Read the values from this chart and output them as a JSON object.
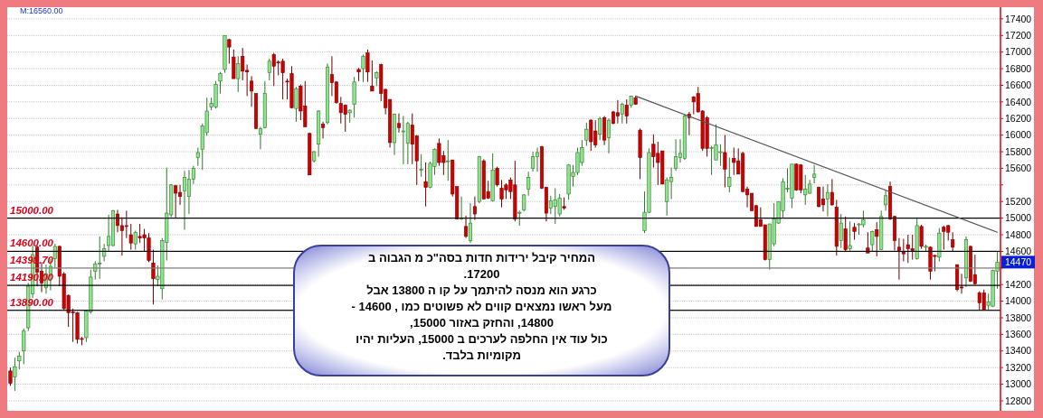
{
  "chart_data": {
    "type": "candlestick",
    "categories": [
      null,
      null,
      null,
      null,
      null,
      null,
      null,
      null,
      null,
      null,
      null,
      null,
      null,
      null,
      null,
      null,
      null,
      null,
      null,
      null,
      null,
      null,
      null,
      null,
      null,
      null,
      null,
      null,
      null,
      null,
      null,
      null,
      null,
      null,
      null,
      null,
      null,
      null,
      null,
      null,
      null,
      null,
      null,
      null,
      null,
      null,
      null,
      null,
      null,
      null,
      null,
      null,
      null,
      null,
      null,
      null,
      null,
      null,
      null,
      null,
      null,
      null,
      null,
      null,
      null,
      null,
      null,
      null,
      null,
      null,
      null,
      null,
      null,
      null,
      null,
      null,
      null,
      null,
      null,
      null,
      null,
      null,
      null,
      null,
      null,
      null,
      null,
      null,
      null,
      null,
      null,
      null,
      null,
      null,
      null,
      null,
      null,
      null,
      null,
      null,
      null,
      null,
      null,
      null,
      null,
      null,
      null,
      null,
      null,
      null,
      null,
      null,
      null,
      null,
      null,
      null,
      null,
      null,
      null,
      null,
      null,
      null,
      null,
      null,
      null,
      null,
      null,
      null,
      null,
      null,
      null,
      null,
      null,
      null,
      null,
      null,
      null,
      null,
      null,
      null,
      null,
      null,
      null,
      null,
      null,
      null,
      null,
      null,
      null,
      null,
      null,
      null,
      null,
      null,
      null,
      null,
      null,
      null,
      null,
      null,
      null,
      null,
      null,
      null,
      null,
      null,
      null,
      null,
      null,
      null,
      null,
      null,
      null,
      null,
      null,
      null,
      null,
      null,
      null,
      null,
      null,
      null,
      null,
      null,
      null,
      null,
      null,
      null,
      null,
      null,
      null,
      null,
      null,
      null,
      null,
      null,
      null,
      null,
      null,
      null,
      null,
      null,
      null,
      null,
      null,
      null,
      null,
      null,
      null,
      null,
      null,
      null,
      null,
      null,
      null,
      null,
      null,
      null,
      null,
      null,
      null,
      null
    ],
    "ohlc": [
      [
        13160,
        13200,
        12980,
        13010
      ],
      [
        13090,
        13320,
        12920,
        13210
      ],
      [
        13280,
        13390,
        13180,
        13340
      ],
      [
        13400,
        13670,
        13240,
        13640
      ],
      [
        13680,
        14220,
        13640,
        14180
      ],
      [
        14090,
        14670,
        14040,
        14560
      ],
      [
        14650,
        14670,
        14180,
        14350
      ],
      [
        14360,
        14470,
        14110,
        14220
      ],
      [
        14160,
        14440,
        14090,
        14330
      ],
      [
        14310,
        14510,
        14130,
        14420
      ],
      [
        14510,
        14690,
        14400,
        14660
      ],
      [
        14660,
        14670,
        14180,
        14300
      ],
      [
        14330,
        14350,
        13890,
        13910
      ],
      [
        14070,
        14080,
        13690,
        13860
      ],
      [
        13870,
        13910,
        13510,
        13860
      ],
      [
        13860,
        13870,
        13490,
        13540
      ],
      [
        13550,
        13570,
        13470,
        13540
      ],
      [
        13560,
        13890,
        13510,
        13880
      ],
      [
        13870,
        14380,
        13850,
        14290
      ],
      [
        14360,
        14480,
        14260,
        14450
      ],
      [
        14450,
        14780,
        14270,
        14460
      ],
      [
        14540,
        14690,
        14480,
        14630
      ],
      [
        14670,
        15040,
        14600,
        14780
      ],
      [
        14670,
        15100,
        14660,
        15090
      ],
      [
        15050,
        15100,
        14830,
        14910
      ],
      [
        14910,
        15010,
        14550,
        14850
      ],
      [
        14910,
        15090,
        14760,
        14900
      ],
      [
        14800,
        14930,
        14620,
        14700
      ],
      [
        14690,
        14850,
        14620,
        14830
      ],
      [
        14780,
        14930,
        14700,
        14760
      ],
      [
        14800,
        14870,
        14600,
        14760
      ],
      [
        14760,
        14820,
        14470,
        14490
      ],
      [
        14460,
        14620,
        13960,
        14270
      ],
      [
        14260,
        14430,
        14180,
        14300
      ],
      [
        14150,
        14760,
        14020,
        14730
      ],
      [
        14710,
        15610,
        14490,
        15060
      ],
      [
        15040,
        15410,
        15010,
        15400
      ],
      [
        15390,
        15400,
        15000,
        15300
      ],
      [
        15310,
        15400,
        15160,
        15260
      ],
      [
        15330,
        15570,
        14860,
        15490
      ],
      [
        15260,
        15580,
        15050,
        15470
      ],
      [
        15470,
        15630,
        15410,
        15600
      ],
      [
        15730,
        15850,
        15630,
        15790
      ],
      [
        15830,
        16140,
        15580,
        16110
      ],
      [
        16030,
        16450,
        15990,
        16290
      ],
      [
        16340,
        16450,
        16300,
        16380
      ],
      [
        16340,
        16650,
        16320,
        16610
      ],
      [
        16650,
        16760,
        16500,
        16740
      ],
      [
        16790,
        17200,
        16750,
        17200
      ],
      [
        17150,
        17160,
        16860,
        17060
      ],
      [
        16940,
        17030,
        16680,
        16680
      ],
      [
        16680,
        16950,
        16520,
        16860
      ],
      [
        16950,
        17050,
        16660,
        16770
      ],
      [
        16780,
        16850,
        16470,
        16760
      ],
      [
        16650,
        16710,
        16340,
        16530
      ],
      [
        16500,
        16500,
        16080,
        16080
      ],
      [
        16010,
        16100,
        15830,
        16080
      ],
      [
        16090,
        16650,
        16080,
        16500
      ],
      [
        16750,
        16920,
        16660,
        16890
      ],
      [
        16970,
        16990,
        16590,
        16830
      ],
      [
        16880,
        16900,
        16720,
        16870
      ],
      [
        16890,
        16920,
        16430,
        16750
      ],
      [
        16650,
        16680,
        16430,
        16640
      ],
      [
        16740,
        16830,
        16320,
        16330
      ],
      [
        16320,
        16580,
        16160,
        16560
      ],
      [
        16590,
        16610,
        16180,
        16290
      ],
      [
        16350,
        16650,
        16100,
        16100
      ],
      [
        16020,
        16030,
        15520,
        15520
      ],
      [
        15690,
        15810,
        15670,
        15800
      ],
      [
        15890,
        16300,
        15740,
        16290
      ],
      [
        16130,
        16160,
        15960,
        16090
      ],
      [
        16150,
        16860,
        16130,
        16820
      ],
      [
        16730,
        16950,
        16470,
        16630
      ],
      [
        16640,
        16650,
        16380,
        16390
      ],
      [
        16380,
        16460,
        16140,
        16270
      ],
      [
        16360,
        16370,
        16040,
        16250
      ],
      [
        16270,
        16310,
        16150,
        16300
      ],
      [
        16370,
        16700,
        16210,
        16640
      ],
      [
        16790,
        16810,
        16650,
        16760
      ],
      [
        16800,
        16970,
        16640,
        16950
      ],
      [
        16990,
        17030,
        16640,
        16760
      ],
      [
        16590,
        16900,
        16530,
        16530
      ],
      [
        16690,
        16770,
        16590,
        16750
      ],
      [
        16850,
        16860,
        16410,
        16500
      ],
      [
        16550,
        16560,
        16250,
        16330
      ],
      [
        16430,
        16430,
        15850,
        15910
      ],
      [
        15910,
        16260,
        15760,
        16250
      ],
      [
        16140,
        16260,
        16030,
        16090
      ],
      [
        16050,
        16230,
        15650,
        16050
      ],
      [
        15900,
        16160,
        15650,
        16140
      ],
      [
        16120,
        16260,
        15650,
        15890
      ],
      [
        15990,
        16000,
        15400,
        15690
      ],
      [
        15590,
        15770,
        15500,
        15590
      ],
      [
        15440,
        15670,
        15140,
        15370
      ],
      [
        15370,
        15680,
        15360,
        15660
      ],
      [
        15620,
        15840,
        15520,
        15830
      ],
      [
        15900,
        15960,
        15630,
        15670
      ],
      [
        15750,
        15810,
        15520,
        15670
      ],
      [
        15690,
        15940,
        15450,
        15690
      ],
      [
        15700,
        15700,
        15260,
        15290
      ],
      [
        15380,
        15380,
        14990,
        14990
      ],
      [
        15000,
        15260,
        14980,
        15000
      ],
      [
        14900,
        15030,
        14760,
        14780
      ],
      [
        14730,
        15180,
        14700,
        14940
      ],
      [
        15140,
        15260,
        14980,
        15050
      ],
      [
        15200,
        15750,
        15180,
        15740
      ],
      [
        15690,
        15710,
        15230,
        15230
      ],
      [
        15320,
        15450,
        15230,
        15240
      ],
      [
        15210,
        15780,
        15200,
        15580
      ],
      [
        15600,
        15620,
        15380,
        15400
      ],
      [
        15360,
        15460,
        15130,
        15230
      ],
      [
        15400,
        15420,
        15230,
        15340
      ],
      [
        15460,
        15490,
        15230,
        15320
      ],
      [
        15400,
        15690,
        14960,
        14990
      ],
      [
        15070,
        15090,
        14910,
        15070
      ],
      [
        15100,
        15290,
        15080,
        15280
      ],
      [
        15350,
        15560,
        15270,
        15490
      ],
      [
        15600,
        15800,
        15560,
        15740
      ],
      [
        15740,
        15850,
        15560,
        15790
      ],
      [
        15860,
        15870,
        15350,
        15360
      ],
      [
        15370,
        15380,
        14960,
        15060
      ],
      [
        15120,
        15270,
        15050,
        15210
      ],
      [
        15140,
        15360,
        14930,
        15220
      ],
      [
        15050,
        15290,
        15020,
        15240
      ],
      [
        15140,
        15250,
        15100,
        15120
      ],
      [
        15290,
        15650,
        15220,
        15640
      ],
      [
        15500,
        15640,
        15380,
        15550
      ],
      [
        15550,
        15850,
        15520,
        15790
      ],
      [
        15670,
        15940,
        15630,
        15850
      ],
      [
        15940,
        16150,
        15870,
        16070
      ],
      [
        16180,
        16190,
        15810,
        15920
      ],
      [
        16050,
        16180,
        15850,
        15880
      ],
      [
        16010,
        16220,
        15940,
        16200
      ],
      [
        16210,
        16230,
        15880,
        15940
      ],
      [
        15970,
        16200,
        15780,
        16180
      ],
      [
        16280,
        16290,
        16130,
        16140
      ],
      [
        16270,
        16420,
        16140,
        16230
      ],
      [
        16250,
        16390,
        16140,
        16370
      ],
      [
        16360,
        16430,
        16140,
        16230
      ],
      [
        16360,
        16470,
        16330,
        16470
      ],
      [
        16450,
        16470,
        16370,
        16370
      ],
      [
        16060,
        16080,
        15470,
        15730
      ],
      [
        14850,
        15320,
        14820,
        15070
      ],
      [
        15070,
        15840,
        15060,
        15790
      ],
      [
        15890,
        16010,
        15610,
        15740
      ],
      [
        15780,
        15920,
        15400,
        15670
      ],
      [
        15810,
        15810,
        15410,
        15410
      ],
      [
        15200,
        15490,
        15030,
        15460
      ],
      [
        15440,
        15610,
        15230,
        15490
      ],
      [
        15600,
        15950,
        15570,
        15740
      ],
      [
        15730,
        15950,
        15670,
        15780
      ],
      [
        15720,
        16250,
        15700,
        16230
      ],
      [
        16250,
        16280,
        16000,
        16210
      ],
      [
        16460,
        16470,
        16250,
        16400
      ],
      [
        16500,
        16580,
        16270,
        16280
      ],
      [
        16290,
        16300,
        15810,
        15840
      ],
      [
        16210,
        16230,
        15740,
        15840
      ],
      [
        15850,
        15870,
        15520,
        15850
      ],
      [
        15700,
        16130,
        15700,
        15880
      ],
      [
        15800,
        15890,
        15630,
        15800
      ],
      [
        15790,
        16000,
        15370,
        15590
      ],
      [
        15380,
        15730,
        15310,
        15490
      ],
      [
        15720,
        15850,
        15520,
        15670
      ],
      [
        15690,
        15840,
        15530,
        15530
      ],
      [
        15780,
        15800,
        15310,
        15320
      ],
      [
        15350,
        15380,
        15130,
        15280
      ],
      [
        15300,
        15300,
        15090,
        15090
      ],
      [
        15150,
        15160,
        14900,
        14900
      ],
      [
        14980,
        15130,
        14900,
        14900
      ],
      [
        14920,
        14920,
        14490,
        14500
      ],
      [
        14500,
        14930,
        14380,
        14930
      ],
      [
        14690,
        15180,
        14660,
        14990
      ],
      [
        14940,
        15200,
        14930,
        15200
      ],
      [
        15090,
        15480,
        15000,
        15440
      ],
      [
        15360,
        15600,
        15310,
        15360
      ],
      [
        15240,
        15650,
        15120,
        15650
      ],
      [
        15650,
        15660,
        15330,
        15340
      ],
      [
        15640,
        15650,
        15300,
        15340
      ],
      [
        15280,
        15520,
        15160,
        15350
      ],
      [
        15300,
        15460,
        15290,
        15410
      ],
      [
        15490,
        15640,
        15420,
        15530
      ],
      [
        15370,
        15380,
        15130,
        15140
      ],
      [
        15230,
        15380,
        15080,
        15160
      ],
      [
        15230,
        15410,
        15020,
        15310
      ],
      [
        15310,
        15470,
        15150,
        15160
      ],
      [
        15130,
        15220,
        14550,
        14660
      ],
      [
        14730,
        15050,
        14640,
        14940
      ],
      [
        14870,
        15020,
        14600,
        14620
      ],
      [
        14630,
        14960,
        14610,
        14670
      ],
      [
        14890,
        14940,
        14740,
        14840
      ],
      [
        14920,
        14940,
        14800,
        14930
      ],
      [
        14920,
        15090,
        14890,
        14980
      ],
      [
        14640,
        14830,
        14580,
        14580
      ],
      [
        14680,
        14850,
        14600,
        14840
      ],
      [
        14860,
        14950,
        14540,
        14780
      ],
      [
        14620,
        15090,
        14620,
        15020
      ],
      [
        15160,
        15330,
        15090,
        15270
      ],
      [
        15380,
        15440,
        14980,
        14990
      ],
      [
        15020,
        15030,
        14610,
        14730
      ],
      [
        14650,
        14760,
        14260,
        14610
      ],
      [
        14590,
        14750,
        14480,
        14570
      ],
      [
        14680,
        14800,
        14460,
        14630
      ],
      [
        14630,
        14800,
        14500,
        14610
      ],
      [
        14510,
        15010,
        14500,
        14910
      ],
      [
        14900,
        14920,
        14630,
        14660
      ],
      [
        14660,
        14680,
        14600,
        14660
      ],
      [
        14650,
        14660,
        14260,
        14360
      ],
      [
        14550,
        14560,
        14360,
        14540
      ],
      [
        14530,
        14880,
        14480,
        14820
      ],
      [
        14890,
        14910,
        14620,
        14840
      ],
      [
        14910,
        14920,
        14730,
        14830
      ],
      [
        14740,
        14830,
        14600,
        14650
      ],
      [
        14440,
        14440,
        14120,
        14140
      ],
      [
        14170,
        14330,
        14090,
        14160
      ],
      [
        14280,
        14780,
        14170,
        14740
      ],
      [
        14660,
        14670,
        14230,
        14240
      ],
      [
        14320,
        14560,
        14200,
        14210
      ],
      [
        14100,
        14120,
        13890,
        13980
      ],
      [
        14100,
        14140,
        13890,
        13900
      ],
      [
        13950,
        14090,
        13890,
        13990
      ],
      [
        13940,
        14380,
        13930,
        14370
      ],
      [
        14360,
        14600,
        14150,
        14470
      ]
    ],
    "series": [
      {
        "type": "line",
        "color": "#555555",
        "values": [
          null,
          null,
          null,
          null,
          null,
          null,
          null,
          null,
          null,
          null,
          null,
          null,
          null,
          null,
          null,
          null,
          null,
          null,
          null,
          null,
          null,
          null,
          null,
          null,
          null,
          null,
          null,
          null,
          null,
          null,
          null,
          null,
          null,
          null,
          null,
          null,
          null,
          null,
          null,
          null,
          null,
          null,
          null,
          null,
          null,
          null,
          null,
          null,
          null,
          null,
          null,
          null,
          null,
          null,
          null,
          null,
          null,
          null,
          null,
          null,
          null,
          null,
          null,
          null,
          null,
          null,
          null,
          null,
          null,
          null,
          null,
          null,
          null,
          null,
          null,
          null,
          null,
          null,
          null,
          null,
          null,
          null,
          null,
          null,
          null,
          null,
          null,
          null,
          null,
          null,
          null,
          null,
          null,
          null,
          null,
          null,
          null,
          null,
          null,
          null,
          null,
          null,
          null,
          null,
          null,
          null,
          null,
          null,
          null,
          null,
          null,
          null,
          null,
          null,
          null,
          null,
          null,
          null,
          null,
          null,
          null,
          null,
          null,
          null,
          null,
          null,
          null,
          null,
          null,
          null,
          null,
          null,
          null,
          null,
          null,
          null,
          null,
          null,
          null,
          null,
          16470,
          null,
          null,
          null,
          null,
          null,
          null,
          null,
          null,
          null,
          null,
          null,
          null,
          null,
          null,
          null,
          null,
          null,
          null,
          null,
          null,
          null,
          null,
          null,
          null,
          null,
          null,
          null,
          null,
          null,
          null,
          null,
          null,
          null,
          null,
          null,
          null,
          null,
          null,
          null,
          null,
          null,
          null,
          null,
          null,
          null,
          null,
          null,
          null,
          null,
          null,
          null,
          null,
          null,
          null,
          null,
          null,
          null,
          null,
          null,
          null,
          null,
          null,
          null,
          null,
          null,
          null,
          null,
          null,
          null,
          null,
          null,
          null,
          null,
          null,
          null,
          null,
          null,
          null,
          null,
          null,
          14830
        ]
      }
    ],
    "ylim": [
      12680,
      17540
    ],
    "yticks": [
      12800,
      13000,
      13200,
      13400,
      13600,
      13800,
      14000,
      14200,
      {
        "value": 14400,
        "label": null
      },
      14600,
      14800,
      15000,
      15200,
      {
        "value": 15400,
        "label": null
      },
      15600,
      15800,
      16000,
      16200,
      16400,
      16600,
      16800,
      17000,
      17200,
      17400
    ],
    "tick_labels": "y",
    "grid": "y",
    "ref_lines": [
      {
        "axis": "y",
        "value": 15000,
        "label": "15000.00",
        "color": "#000000"
      },
      {
        "axis": "y",
        "value": 14600,
        "label": "14600.00",
        "color": "#000000"
      },
      {
        "axis": "y",
        "value": 14398.7,
        "label": "14398.70",
        "color": "#808080"
      },
      {
        "axis": "y",
        "value": 14190,
        "label": "14190.00",
        "color": "#000000"
      },
      {
        "axis": "y",
        "value": 13890,
        "label": "13890.00",
        "color": "#000000"
      }
    ],
    "annotations": [
      "M:16560.00",
      {
        "text": "14470",
        "y": 14470
      },
      "המחיר   קיבל  ירידות חדות  בסה\"כ  מ  הגבוה ב\n17200.\nכרגע  הוא  מנסה  להיתמך  על קו  ה  13800   אבל\nמעל ראשו  נמצאים   קווים  לא  פשוטים  כמו , 14600 -\n14800,  והחזק  באזור    15000,\nכול עוד   אין  החלפה   לערכים  ב  15000,  העליות  יהיו\nמקומיות בלבד."
    ]
  }
}
